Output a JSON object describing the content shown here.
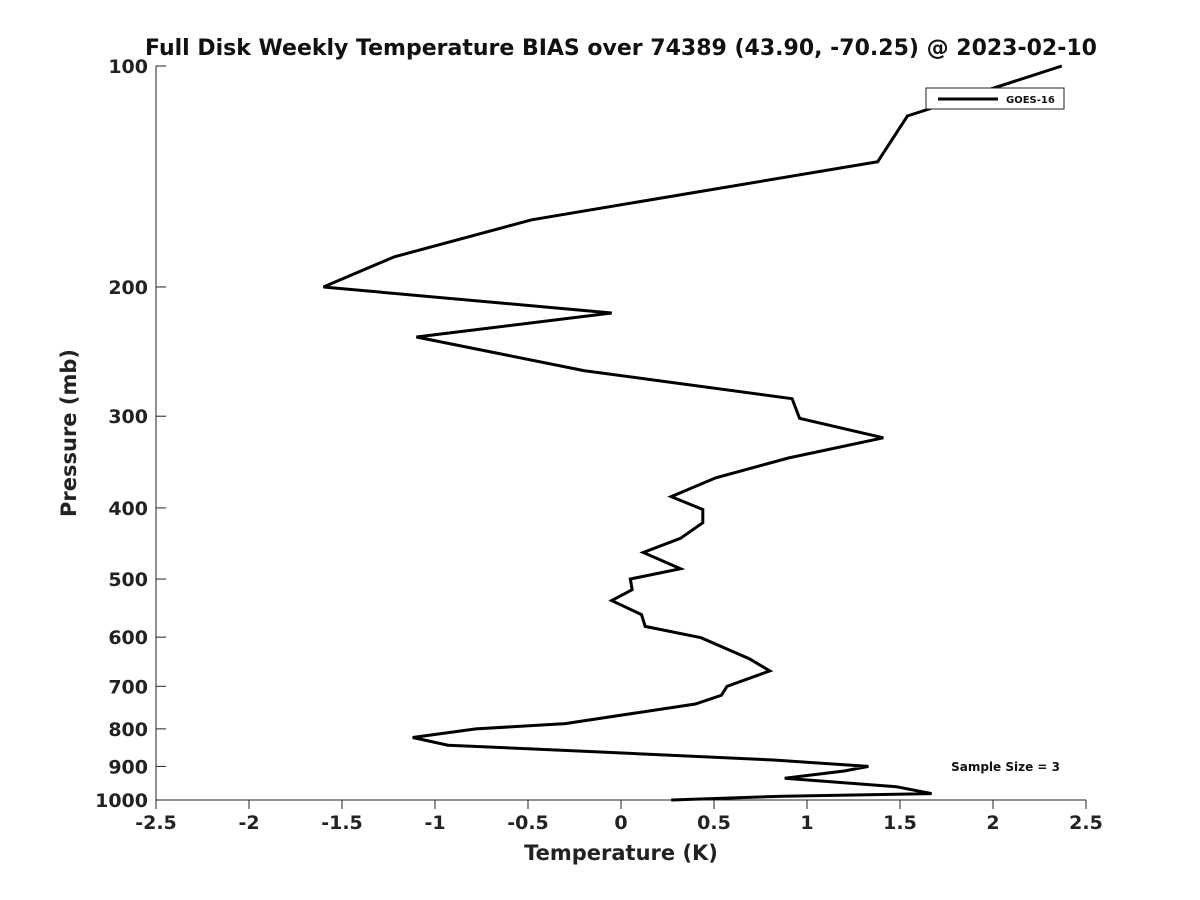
{
  "chart_data": {
    "type": "line",
    "title": "Full Disk Weekly Temperature BIAS over 74389 (43.90, -70.25) @ 2023-02-10",
    "xlabel": "Temperature (K)",
    "ylabel": "Pressure (mb)",
    "xlim": [
      -2.5,
      2.5
    ],
    "ylim": [
      1000,
      100
    ],
    "yscale": "log",
    "x_ticks": [
      -2.5,
      -2,
      -1.5,
      -1,
      -0.5,
      0,
      0.5,
      1,
      1.5,
      2,
      2.5
    ],
    "x_tick_labels": [
      "-2.5",
      "-2",
      "-1.5",
      "-1",
      "-0.5",
      "0",
      "0.5",
      "1",
      "1.5",
      "2",
      "2.5"
    ],
    "y_ticks": [
      100,
      200,
      300,
      400,
      500,
      600,
      700,
      800,
      900,
      1000
    ],
    "y_tick_labels": [
      "100",
      "200",
      "300",
      "400",
      "500",
      "600",
      "700",
      "800",
      "900",
      "1000"
    ],
    "grid": false,
    "legend_position": "top-right",
    "annotation": "Sample Size = 3",
    "series": [
      {
        "name": "GOES-16",
        "color": "#000000",
        "points": [
          {
            "x": 2.37,
            "y": 100
          },
          {
            "x": 1.54,
            "y": 117
          },
          {
            "x": 1.38,
            "y": 135
          },
          {
            "x": -0.48,
            "y": 162
          },
          {
            "x": -1.22,
            "y": 182
          },
          {
            "x": -1.6,
            "y": 200
          },
          {
            "x": -0.05,
            "y": 217
          },
          {
            "x": -1.1,
            "y": 234
          },
          {
            "x": -0.2,
            "y": 260
          },
          {
            "x": 0.92,
            "y": 284
          },
          {
            "x": 0.96,
            "y": 302
          },
          {
            "x": 1.41,
            "y": 321
          },
          {
            "x": 0.9,
            "y": 342
          },
          {
            "x": 0.51,
            "y": 364
          },
          {
            "x": 0.27,
            "y": 386
          },
          {
            "x": 0.44,
            "y": 402
          },
          {
            "x": 0.44,
            "y": 419
          },
          {
            "x": 0.32,
            "y": 440
          },
          {
            "x": 0.12,
            "y": 460
          },
          {
            "x": 0.32,
            "y": 484
          },
          {
            "x": 0.05,
            "y": 500
          },
          {
            "x": 0.06,
            "y": 517
          },
          {
            "x": -0.05,
            "y": 535
          },
          {
            "x": 0.11,
            "y": 559
          },
          {
            "x": 0.13,
            "y": 580
          },
          {
            "x": 0.43,
            "y": 601
          },
          {
            "x": 0.69,
            "y": 642
          },
          {
            "x": 0.8,
            "y": 667
          },
          {
            "x": 0.57,
            "y": 700
          },
          {
            "x": 0.54,
            "y": 720
          },
          {
            "x": 0.4,
            "y": 740
          },
          {
            "x": -0.3,
            "y": 787
          },
          {
            "x": -0.78,
            "y": 800
          },
          {
            "x": -1.12,
            "y": 822
          },
          {
            "x": -0.93,
            "y": 842
          },
          {
            "x": -0.2,
            "y": 858
          },
          {
            "x": 0.82,
            "y": 882
          },
          {
            "x": 1.33,
            "y": 900
          },
          {
            "x": 1.2,
            "y": 913
          },
          {
            "x": 0.88,
            "y": 934
          },
          {
            "x": 1.48,
            "y": 959
          },
          {
            "x": 1.67,
            "y": 980
          },
          {
            "x": 0.87,
            "y": 988
          },
          {
            "x": 0.27,
            "y": 1000
          }
        ]
      }
    ]
  }
}
